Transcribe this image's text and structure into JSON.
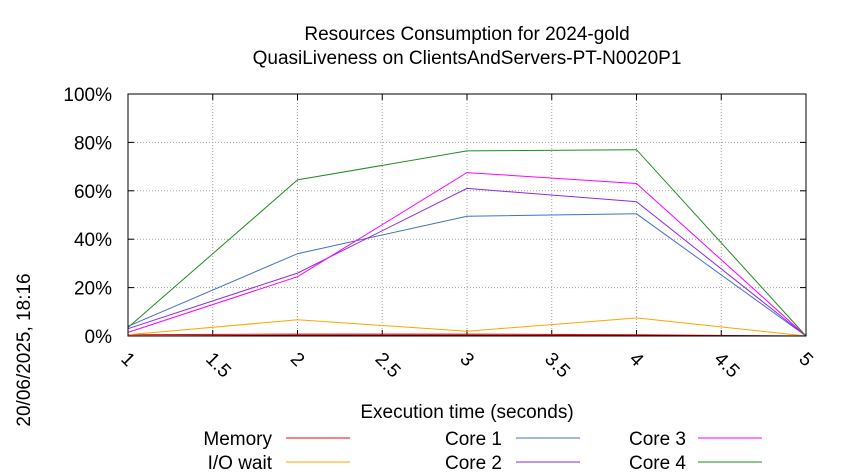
{
  "chart_data": {
    "type": "line",
    "title": "Resources Consumption for 2024-gold",
    "subtitle": "QuasiLiveness on ClientsAndServers-PT-N0020P1",
    "xlabel": "Execution time (seconds)",
    "ylabel": "",
    "side_label": "20/06/2025, 18:16",
    "xlim": [
      1,
      5
    ],
    "ylim": [
      0,
      100
    ],
    "x_ticks": [
      "1",
      "1.5",
      "2",
      "2.5",
      "3",
      "3.5",
      "4",
      "4.5",
      "5"
    ],
    "y_ticks": [
      "0%",
      "20%",
      "40%",
      "60%",
      "80%",
      "100%"
    ],
    "grid": true,
    "legend_position": "bottom",
    "x": [
      1,
      2,
      3,
      4,
      5
    ],
    "series": [
      {
        "name": "Memory",
        "color": "#ff0000",
        "values": [
          0.5,
          0.8,
          0.8,
          0.5,
          0
        ]
      },
      {
        "name": "I/O wait",
        "color": "#ffa500",
        "values": [
          0.5,
          6.7,
          2,
          7.5,
          0
        ]
      },
      {
        "name": "Core 1",
        "color": "#4472c4",
        "values": [
          4,
          34,
          49.5,
          50.5,
          0
        ]
      },
      {
        "name": "Core 2",
        "color": "#8a2be2",
        "values": [
          3,
          26,
          61,
          55.5,
          0
        ]
      },
      {
        "name": "Core 3",
        "color": "#ff00ff",
        "values": [
          1.5,
          24.5,
          67.5,
          63,
          0
        ]
      },
      {
        "name": "Core 4",
        "color": "#228b22",
        "values": [
          3.5,
          64.5,
          76.5,
          77,
          0
        ]
      }
    ],
    "dark_series": {
      "color": "#8b0000",
      "values": [
        0,
        0.3,
        0.3,
        0.2,
        0
      ]
    }
  }
}
